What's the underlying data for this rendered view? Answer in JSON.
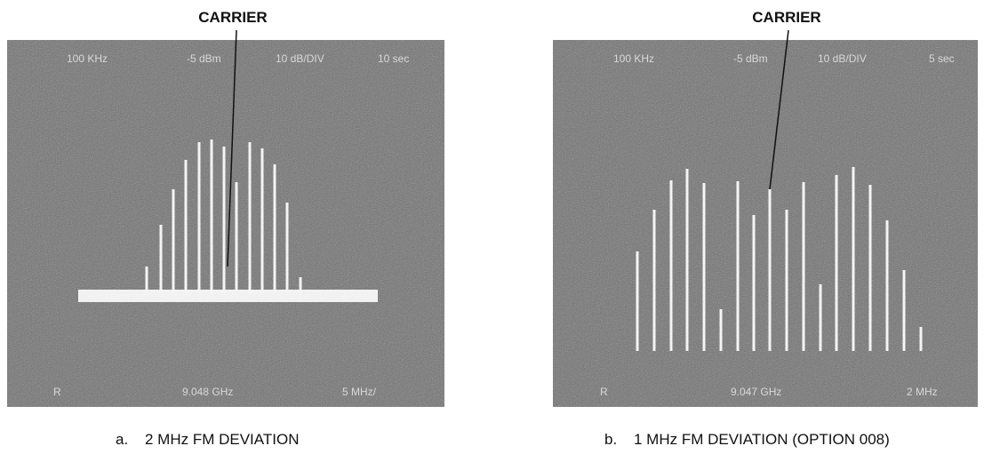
{
  "figures": [
    {
      "carrier_label": "CARRIER",
      "screen": {
        "top": [
          "100 KHz",
          "-5 dBm",
          "10 dB/DIV",
          "10 sec"
        ],
        "bottom": [
          "R",
          "9.048 GHz",
          "5 MHz/"
        ]
      },
      "caption": {
        "letter": "a.",
        "text": "2 MHz FM DEVIATION"
      }
    },
    {
      "carrier_label": "CARRIER",
      "screen": {
        "top": [
          "100 KHz",
          "-5 dBm",
          "10 dB/DIV",
          "5 sec"
        ],
        "bottom": [
          "R",
          "9.047 GHz",
          "2 MHz"
        ]
      },
      "caption": {
        "letter": "b.",
        "text": "1 MHz FM DEVIATION (OPTION 008)"
      }
    }
  ]
}
